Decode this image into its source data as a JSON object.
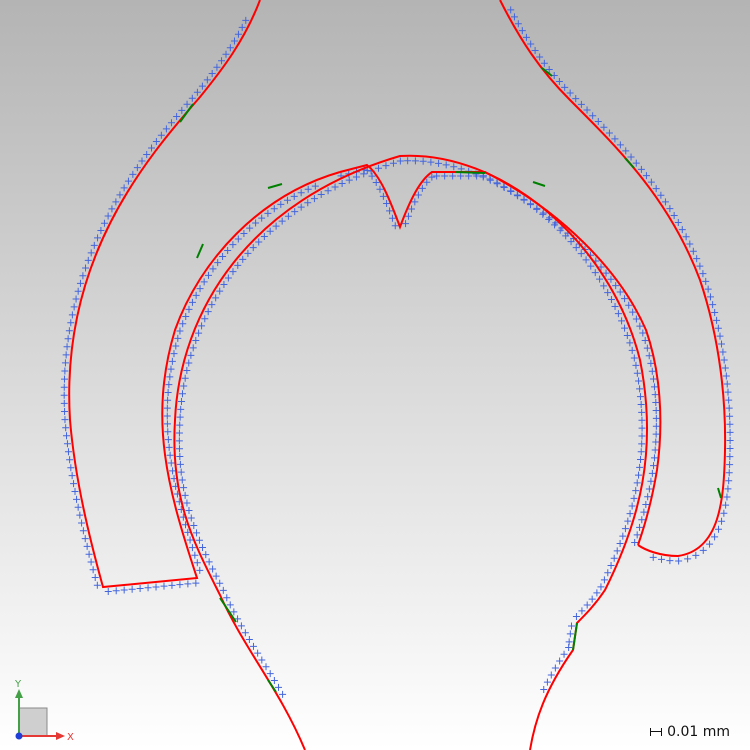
{
  "scale_indicator": {
    "value_label": "0.01 mm"
  },
  "axis_triad": {
    "x_label": "X",
    "y_label": "Y",
    "x_color": "#e53935",
    "y_color": "#43a047",
    "z_color": "#1e3fd8"
  },
  "colors": {
    "nominal_profile": "#ff0000",
    "deviation_segment": "#008000",
    "measured_points": "#4466dd"
  }
}
